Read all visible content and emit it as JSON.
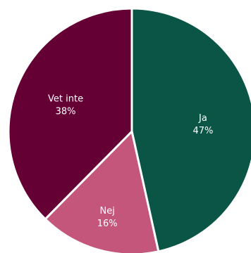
{
  "chart_data": {
    "type": "pie",
    "categories": [
      "Ja",
      "Nej",
      "Vet inte"
    ],
    "values": [
      47,
      16,
      38
    ],
    "value_labels": [
      "47%",
      "16%",
      "38%"
    ],
    "colors": [
      "#0a5546",
      "#c3567a",
      "#650035"
    ],
    "start_angle_deg": 0,
    "direction": "clockwise",
    "legend": "none",
    "title": ""
  }
}
